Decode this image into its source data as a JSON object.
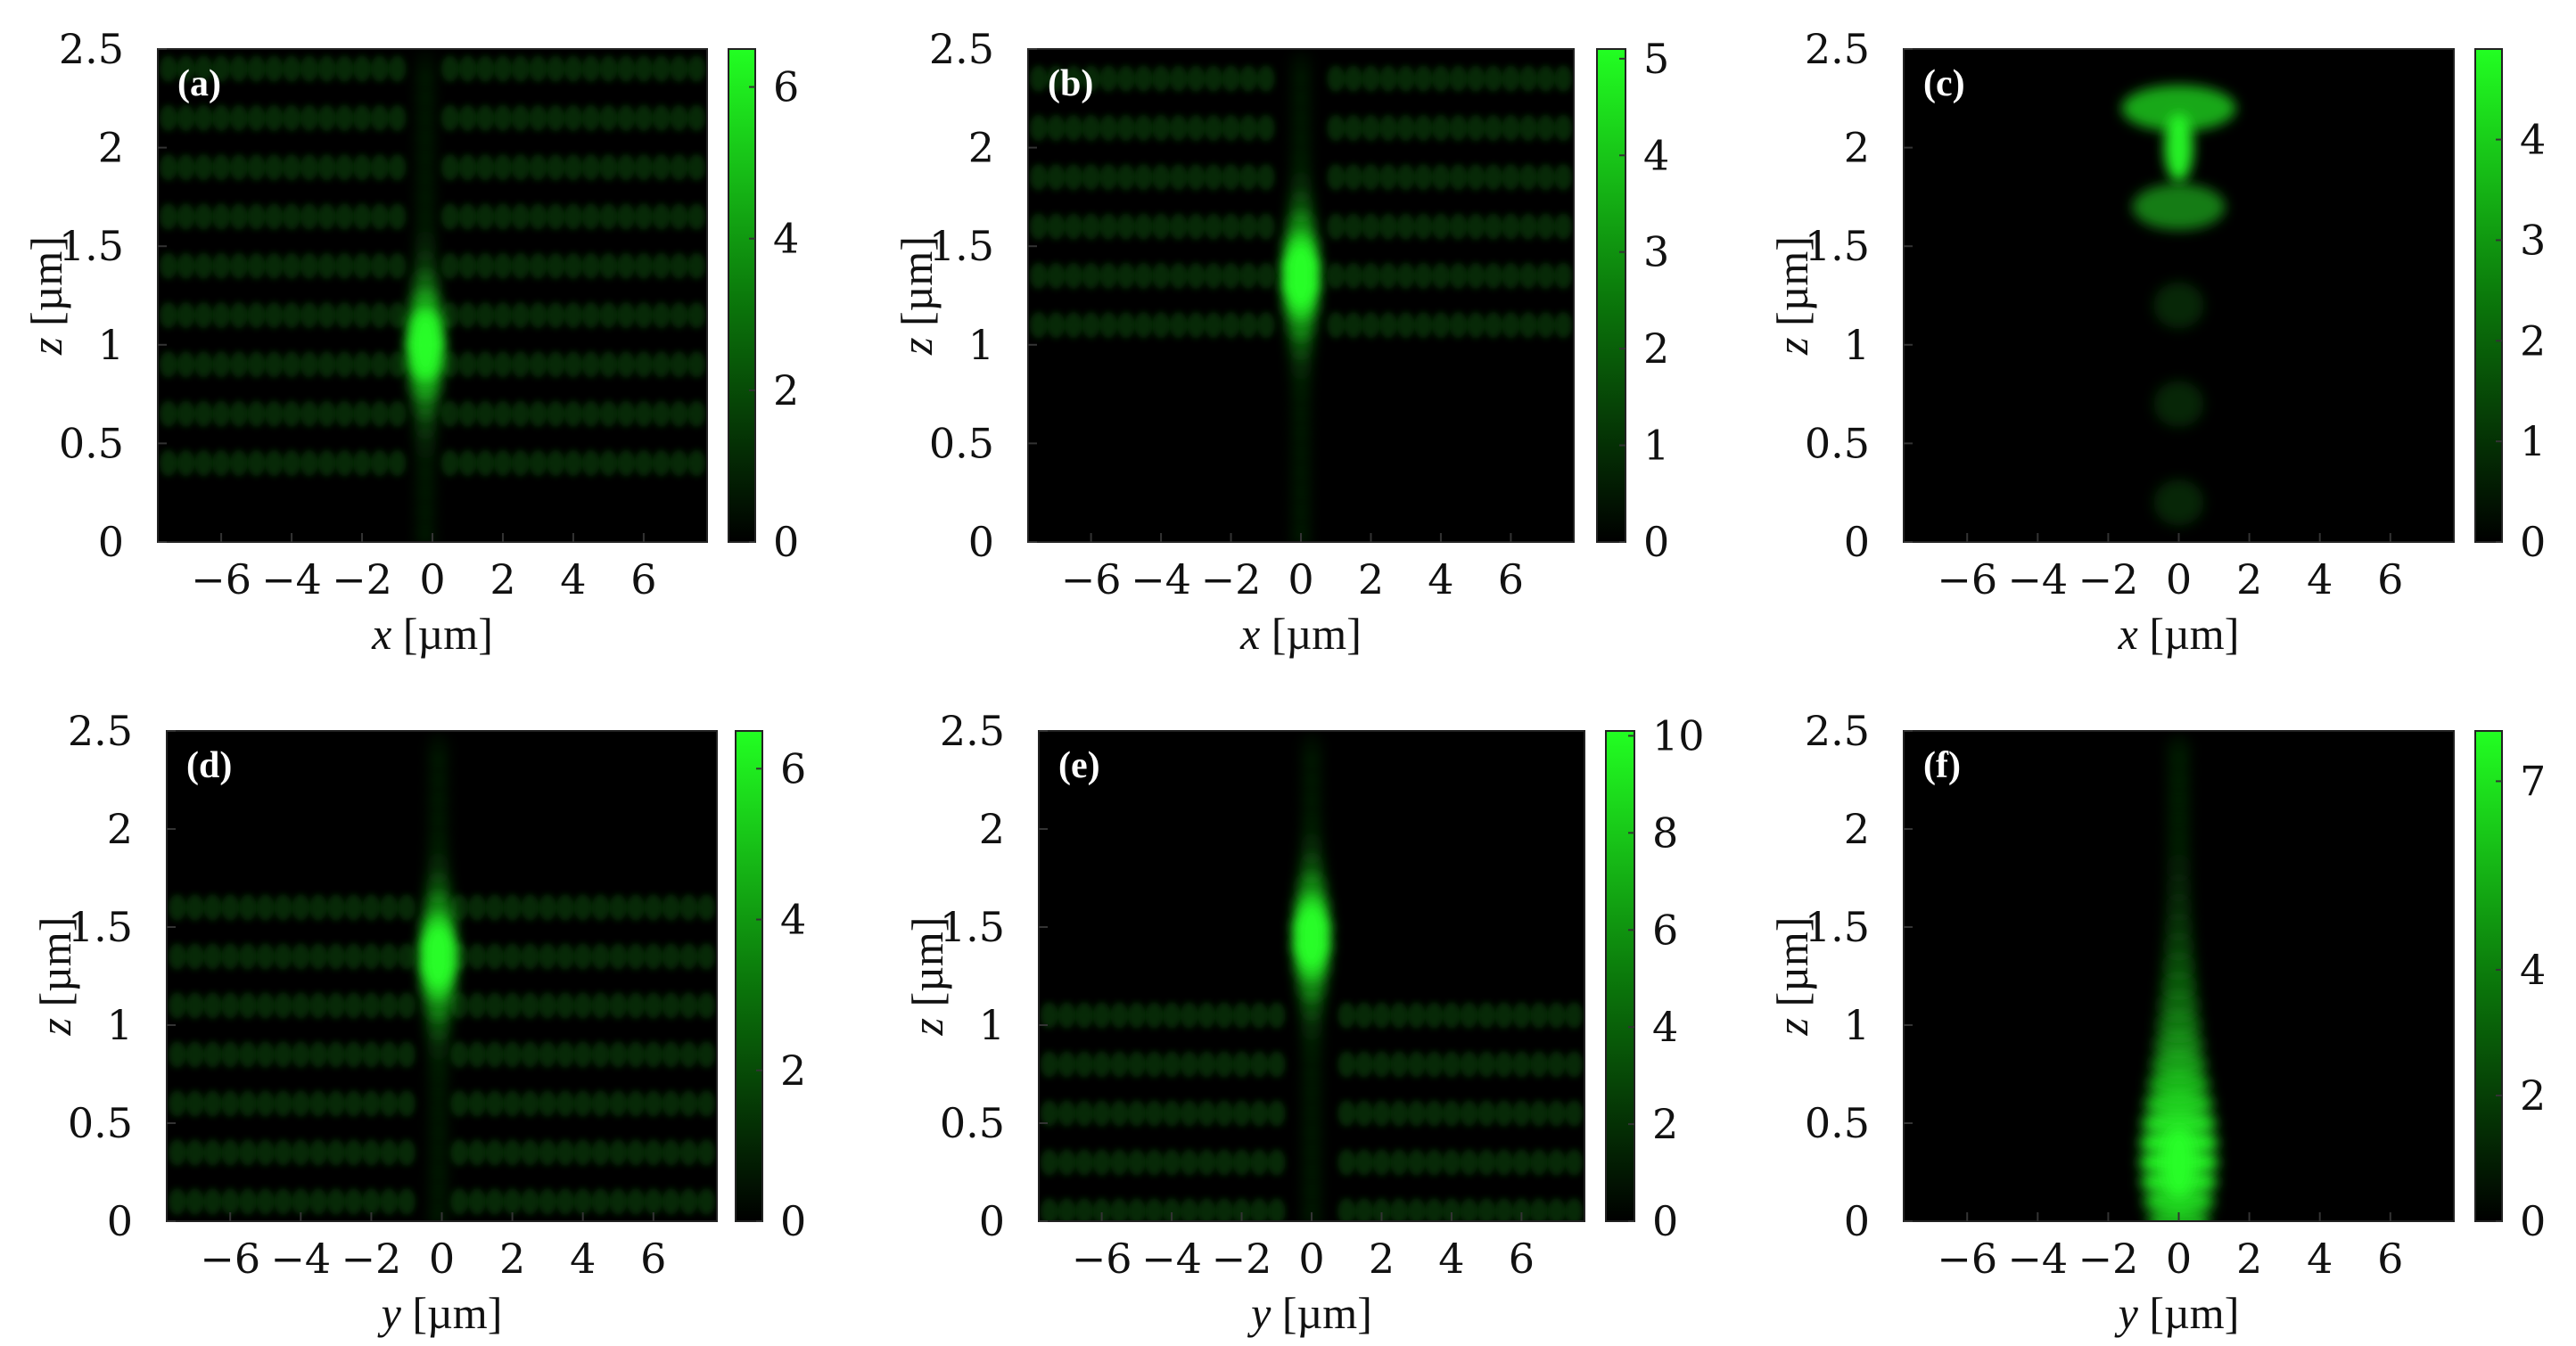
{
  "chart_data": [
    {
      "type": "heatmap",
      "label": "(a)",
      "xlabel_var": "x",
      "xlabel_unit": "[µm]",
      "ylabel_var": "z",
      "ylabel_unit": "[µm]",
      "xlim": [
        -7.8,
        7.8
      ],
      "ylim": [
        0,
        2.5
      ],
      "xticks": [
        "−6",
        "−4",
        "−2",
        "0",
        "2",
        "4",
        "6"
      ],
      "yticks": [
        "0",
        "0.5",
        "1",
        "1.5",
        "2",
        "2.5"
      ],
      "colorbar": {
        "min": 0,
        "max": 6.5,
        "ticks": [
          "0",
          "2",
          "4",
          "6"
        ],
        "tick_values": [
          0,
          2,
          4,
          6
        ]
      },
      "field": {
        "peak_z": 1.0,
        "peak_x": -0.2,
        "peak_value": 6.0,
        "band_spacing": 0.25,
        "band_z_range": [
          0.4,
          2.5
        ],
        "pattern": "side lobes"
      }
    },
    {
      "type": "heatmap",
      "label": "(b)",
      "xlabel_var": "x",
      "xlabel_unit": "[µm]",
      "ylabel_var": "z",
      "ylabel_unit": "[µm]",
      "xlim": [
        -7.8,
        7.8
      ],
      "ylim": [
        0,
        2.5
      ],
      "xticks": [
        "−6",
        "−4",
        "−2",
        "0",
        "2",
        "4",
        "6"
      ],
      "yticks": [
        "0",
        "0.5",
        "1",
        "1.5",
        "2",
        "2.5"
      ],
      "colorbar": {
        "min": 0,
        "max": 5.1,
        "ticks": [
          "0",
          "1",
          "2",
          "3",
          "4",
          "5"
        ],
        "tick_values": [
          0,
          1,
          2,
          3,
          4,
          5
        ]
      },
      "field": {
        "peak_z": 1.35,
        "peak_x": 0.0,
        "peak_value": 5.0,
        "band_spacing": 0.25,
        "band_z_range": [
          1.1,
          2.5
        ],
        "pattern": "side lobes"
      }
    },
    {
      "type": "heatmap",
      "label": "(c)",
      "xlabel_var": "x",
      "xlabel_unit": "[µm]",
      "ylabel_var": "z",
      "ylabel_unit": "[µm]",
      "xlim": [
        -7.8,
        7.8
      ],
      "ylim": [
        0,
        2.5
      ],
      "xticks": [
        "−6",
        "−4",
        "−2",
        "0",
        "2",
        "4",
        "6"
      ],
      "yticks": [
        "0",
        "0.5",
        "1",
        "1.5",
        "2",
        "2.5"
      ],
      "colorbar": {
        "min": 0,
        "max": 4.9,
        "ticks": [
          "0",
          "1",
          "2",
          "3",
          "4"
        ],
        "tick_values": [
          0,
          1,
          2,
          3,
          4
        ]
      },
      "field": {
        "peak_z": 2.0,
        "peak_x": 0.0,
        "peak_value": 4.6,
        "band_spacing": 0.5,
        "band_z_range": [
          0,
          0
        ],
        "pattern": "axial spots"
      }
    },
    {
      "type": "heatmap",
      "label": "(d)",
      "xlabel_var": "y",
      "xlabel_unit": "[µm]",
      "ylabel_var": "z",
      "ylabel_unit": "[µm]",
      "xlim": [
        -7.8,
        7.8
      ],
      "ylim": [
        0,
        2.5
      ],
      "xticks": [
        "−6",
        "−4",
        "−2",
        "0",
        "2",
        "4",
        "6"
      ],
      "yticks": [
        "0",
        "0.5",
        "1",
        "1.5",
        "2",
        "2.5"
      ],
      "colorbar": {
        "min": 0,
        "max": 6.5,
        "ticks": [
          "0",
          "2",
          "4",
          "6"
        ],
        "tick_values": [
          0,
          2,
          4,
          6
        ]
      },
      "field": {
        "peak_z": 1.35,
        "peak_x": -0.1,
        "peak_value": 6.0,
        "band_spacing": 0.25,
        "band_z_range": [
          0.1,
          1.75
        ],
        "pattern": "side lobes"
      }
    },
    {
      "type": "heatmap",
      "label": "(e)",
      "xlabel_var": "y",
      "xlabel_unit": "[µm]",
      "ylabel_var": "z",
      "ylabel_unit": "[µm]",
      "xlim": [
        -7.8,
        7.8
      ],
      "ylim": [
        0,
        2.5
      ],
      "xticks": [
        "−6",
        "−4",
        "−2",
        "0",
        "2",
        "4",
        "6"
      ],
      "yticks": [
        "0",
        "0.5",
        "1",
        "1.5",
        "2",
        "2.5"
      ],
      "colorbar": {
        "min": 0,
        "max": 10.1,
        "ticks": [
          "0",
          "2",
          "4",
          "6",
          "8",
          "10"
        ],
        "tick_values": [
          0,
          2,
          4,
          6,
          8,
          10
        ]
      },
      "field": {
        "peak_z": 1.45,
        "peak_x": 0.0,
        "peak_value": 9.5,
        "band_spacing": 0.25,
        "band_z_range": [
          0.05,
          1.1
        ],
        "pattern": "side lobes"
      }
    },
    {
      "type": "heatmap",
      "label": "(f)",
      "xlabel_var": "y",
      "xlabel_unit": "[µm]",
      "ylabel_var": "z",
      "ylabel_unit": "[µm]",
      "xlim": [
        -7.8,
        7.8
      ],
      "ylim": [
        0,
        2.5
      ],
      "xticks": [
        "−6",
        "−4",
        "−2",
        "0",
        "2",
        "4",
        "6"
      ],
      "yticks": [
        "0",
        "0.5",
        "1",
        "1.5",
        "2",
        "2.5"
      ],
      "colorbar": {
        "min": 0,
        "max": 7.8,
        "ticks": [
          "0",
          "2",
          "4",
          "7"
        ],
        "tick_values": [
          0,
          2,
          4,
          7
        ]
      },
      "field": {
        "peak_z": 0.3,
        "peak_x": 0.0,
        "peak_value": 7.5,
        "band_spacing": 0.5,
        "band_z_range": [
          0,
          0
        ],
        "pattern": "axial column"
      }
    }
  ]
}
